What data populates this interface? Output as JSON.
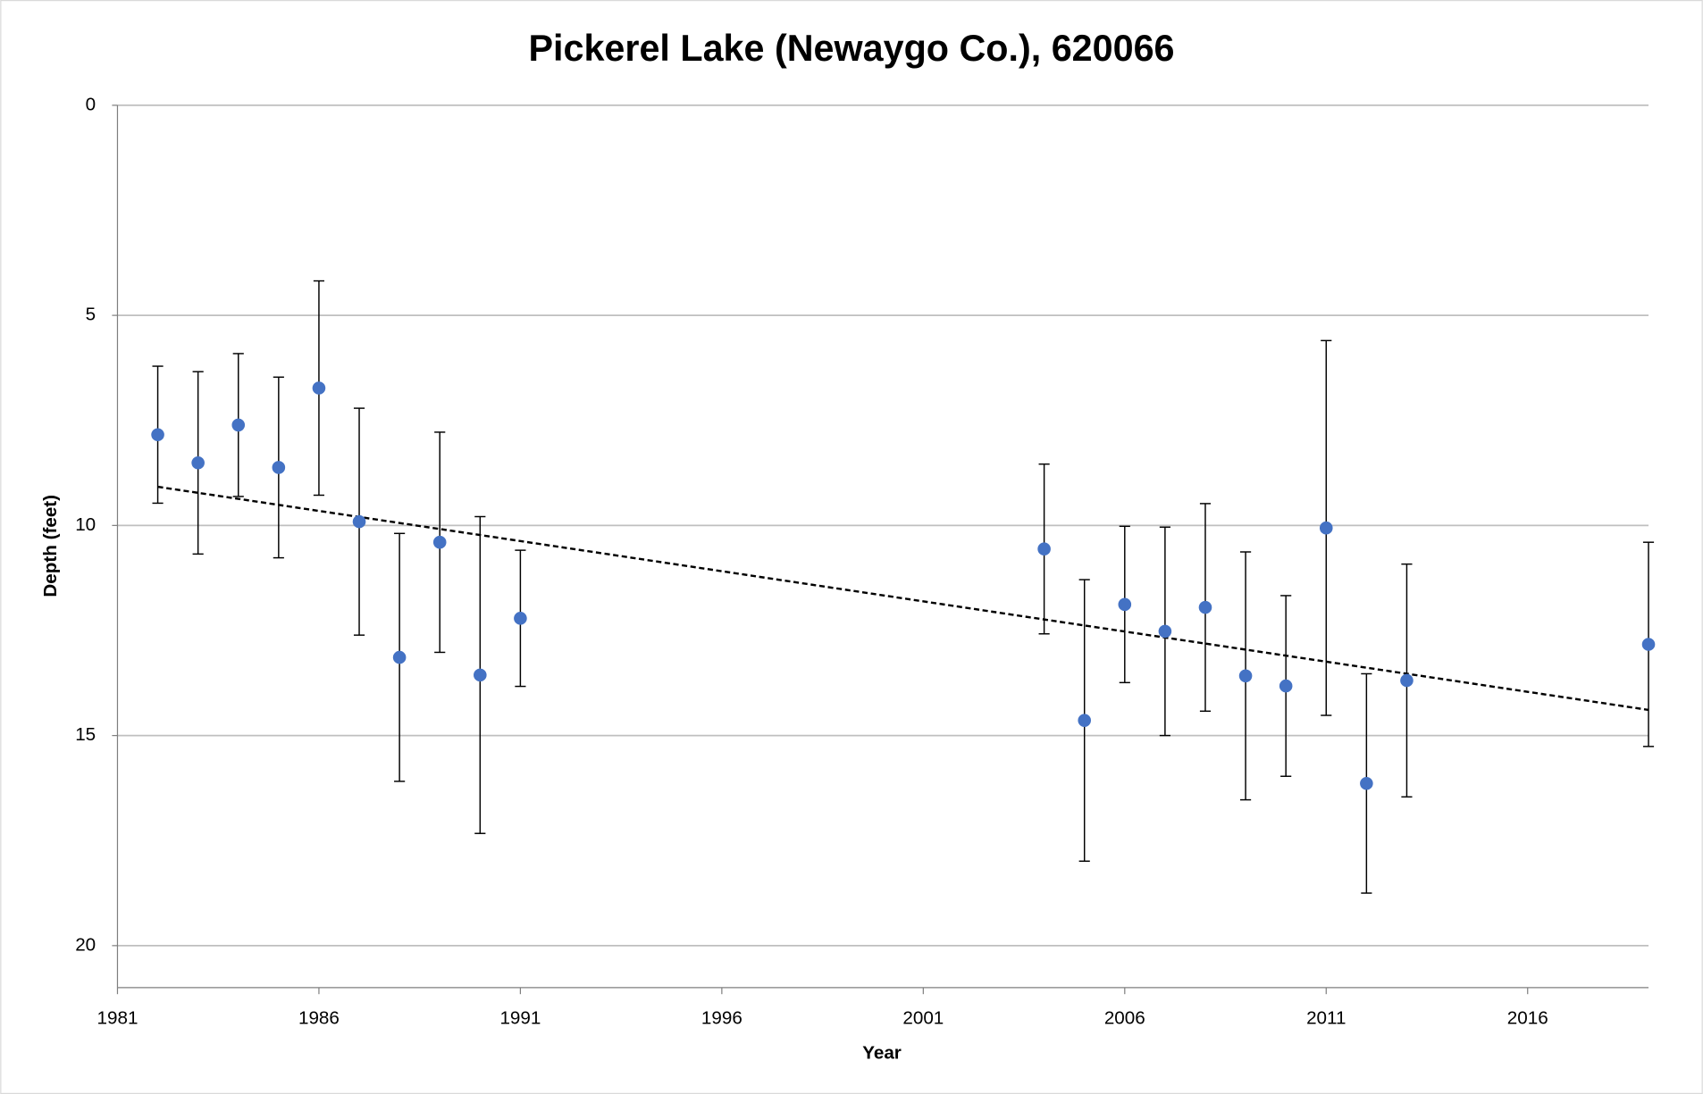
{
  "chart_data": {
    "type": "scatter",
    "title": "Pickerel Lake (Newaygo Co.), 620066",
    "x_label": "Year",
    "y_label": "Depth (feet)",
    "xlim": [
      1981,
      2019
    ],
    "xticks": [
      1981,
      1986,
      1991,
      1996,
      2001,
      2006,
      2011,
      2016
    ],
    "ylim": [
      0,
      21
    ],
    "yticks": [
      0,
      5,
      10,
      15,
      20
    ],
    "y_inverted": true,
    "grid": true,
    "series": [
      {
        "color": "#4472c4",
        "x": [
          1982,
          1983,
          1984,
          1985,
          1986,
          1987,
          1988,
          1989,
          1990,
          1991,
          2004,
          2005,
          2006,
          2007,
          2008,
          2009,
          2010,
          2011,
          2012,
          2013,
          2019
        ],
        "values": [
          7.84,
          8.51,
          7.61,
          8.62,
          6.73,
          9.91,
          13.14,
          10.4,
          13.56,
          12.21,
          10.56,
          14.64,
          11.88,
          12.52,
          11.95,
          13.58,
          13.82,
          10.06,
          16.14,
          13.69,
          12.83
        ],
        "errors": [
          1.63,
          2.17,
          1.7,
          2.15,
          2.55,
          2.7,
          2.95,
          2.62,
          3.77,
          1.62,
          2.02,
          3.35,
          1.86,
          2.48,
          2.47,
          2.95,
          2.15,
          4.46,
          2.61,
          2.77,
          2.43
        ]
      }
    ],
    "trendline": {
      "color": "#000000",
      "style": "dashed",
      "x": [
        1982,
        2019
      ],
      "values": [
        9.08,
        14.39
      ]
    }
  }
}
